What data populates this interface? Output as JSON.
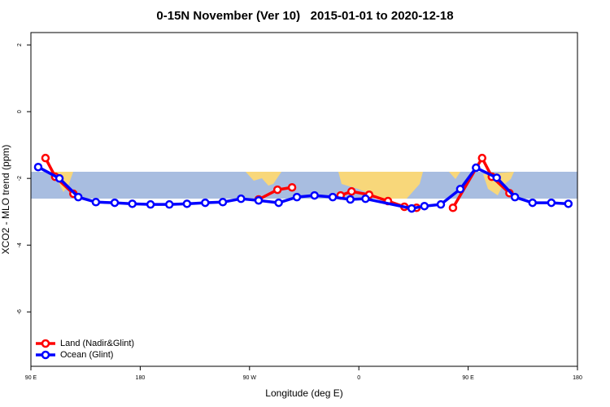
{
  "chart_data": {
    "type": "line",
    "title": "0-15N November (Ver 10)   2015-01-01 to 2020-12-18",
    "x_label": "Longitude (deg E)",
    "y_label": "XCO2 - MLO trend (ppm)",
    "xlim": [
      90,
      540
    ],
    "xticks": [
      {
        "value": 90,
        "label": "90 E"
      },
      180,
      {
        "value": 270,
        "label": "90 W"
      },
      {
        "value": 360,
        "label": "0"
      },
      {
        "value": 450,
        "label": "90 E"
      },
      {
        "value": 540,
        "label": "180"
      }
    ],
    "ylim": [
      -7.63,
      2.37
    ],
    "yticks": [
      -6,
      -4,
      -2,
      0,
      2
    ],
    "legend": "bottom-left",
    "series": [
      {
        "name": "Land (Nadir&Glint)",
        "color": "#ff0000",
        "x": [
          102,
          110,
          125,
          null,
          277.5,
          293,
          305,
          null,
          345,
          354,
          368.5,
          384,
          397.5,
          407.5,
          null,
          437.5,
          461.5,
          469.5,
          484
        ],
        "values": [
          -1.39,
          -1.95,
          -2.46,
          null,
          -2.63,
          -2.34,
          -2.27,
          null,
          -2.51,
          -2.39,
          -2.49,
          -2.68,
          -2.85,
          -2.88,
          null,
          -2.88,
          -1.39,
          -1.95,
          -2.44
        ]
      },
      {
        "name": "Ocean (Glint)",
        "color": "#0000ff",
        "x": [
          96,
          113.5,
          129,
          143.5,
          159,
          173.5,
          188.5,
          204,
          218.5,
          233.5,
          248,
          263,
          277.5,
          294,
          309,
          323.5,
          338.5,
          353,
          365.5,
          403.5,
          414,
          427.5,
          443.5,
          456.5,
          473.5,
          488.5,
          503,
          518.5,
          532.5
        ],
        "values": [
          -1.66,
          -2.0,
          -2.56,
          -2.71,
          -2.73,
          -2.76,
          -2.78,
          -2.78,
          -2.76,
          -2.73,
          -2.71,
          -2.61,
          -2.66,
          -2.73,
          -2.56,
          -2.51,
          -2.56,
          -2.63,
          -2.61,
          -2.9,
          -2.83,
          -2.78,
          -2.32,
          -1.68,
          -1.98,
          -2.56,
          -2.73,
          -2.73,
          -2.76
        ]
      }
    ]
  }
}
